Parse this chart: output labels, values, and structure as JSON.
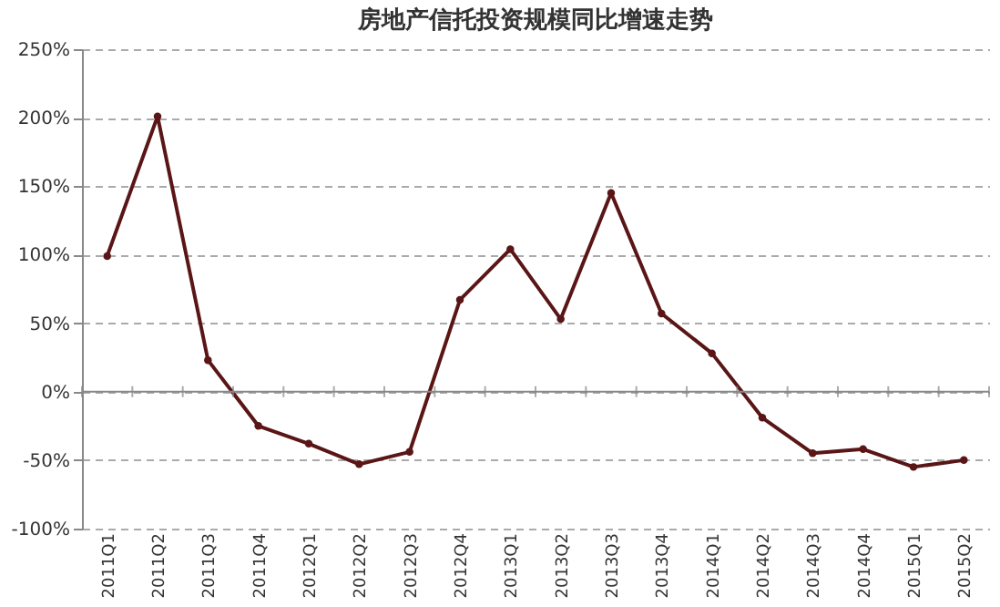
{
  "chart_data": {
    "type": "line",
    "title": "房地产信托投资规模同比增速走势",
    "categories": [
      "2011Q1",
      "2011Q2",
      "2011Q3",
      "2011Q4",
      "2012Q1",
      "2012Q2",
      "2012Q3",
      "2012Q4",
      "2013Q1",
      "2013Q2",
      "2013Q3",
      "2013Q4",
      "2014Q1",
      "2014Q2",
      "2014Q3",
      "2014Q4",
      "2015Q1",
      "2015Q2"
    ],
    "series": [
      {
        "color": "#5a1616",
        "values": [
          99,
          201,
          23,
          -25,
          -38,
          -53,
          -44,
          67,
          104,
          53,
          145,
          57,
          28,
          -19,
          -45,
          -42,
          -55,
          -50
        ]
      }
    ],
    "ylim": [
      -100,
      250
    ],
    "yticks": [
      {
        "value": -100,
        "label": "-100%"
      },
      {
        "value": -50,
        "label": "-50%"
      },
      {
        "value": 0,
        "label": "0%"
      },
      {
        "value": 50,
        "label": "50%"
      },
      {
        "value": 100,
        "label": "100%"
      },
      {
        "value": 150,
        "label": "150%"
      },
      {
        "value": 200,
        "label": "200%"
      },
      {
        "value": 250,
        "label": "250%"
      }
    ],
    "grid": "y",
    "marker": "circle",
    "line_style": "solid",
    "legend": false
  }
}
